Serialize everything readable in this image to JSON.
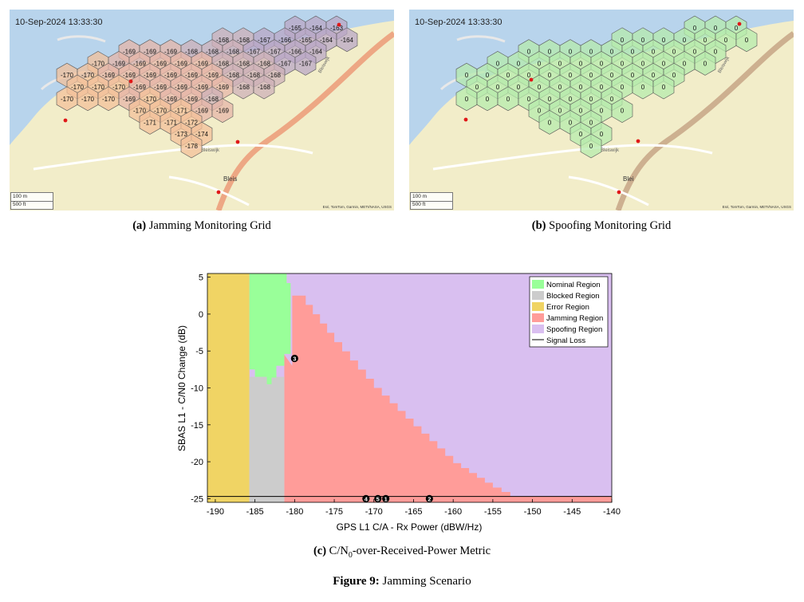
{
  "panel_a": {
    "timestamp": "10-Sep-2024 13:33:30",
    "scale_m": "100 m",
    "scale_ft": "500 ft",
    "attribution": "Esri, TomTom, Garmin, METI/NASA, USGS",
    "street_labels": [
      "Bleiswijk",
      "Bleiswijk",
      "Bleis"
    ],
    "cells": [
      [
        null,
        null,
        null,
        null,
        null,
        null,
        null,
        null,
        null,
        null,
        null,
        -165,
        -164,
        -163
      ],
      [
        null,
        null,
        null,
        null,
        null,
        null,
        null,
        -168,
        -168,
        -167,
        -166,
        -165,
        -164,
        -164
      ],
      [
        null,
        null,
        null,
        -169,
        -169,
        -169,
        -168,
        -168,
        -168,
        -167,
        -167,
        -166,
        -164,
        null
      ],
      [
        null,
        -170,
        -169,
        -169,
        -169,
        -169,
        -169,
        -168,
        -168,
        -168,
        -167,
        -167,
        null,
        null
      ],
      [
        -170,
        -170,
        -169,
        -169,
        -169,
        -169,
        -169,
        -169,
        -168,
        -168,
        -168,
        null,
        null,
        null
      ],
      [
        -170,
        -170,
        -170,
        -169,
        -169,
        -169,
        -169,
        -169,
        -168,
        -168,
        null,
        null,
        null,
        null
      ],
      [
        -170,
        -170,
        -170,
        -169,
        -170,
        -169,
        -169,
        -168,
        null,
        null,
        null,
        null,
        null,
        null
      ],
      [
        null,
        null,
        null,
        -170,
        -170,
        -171,
        -169,
        -169,
        null,
        null,
        null,
        null,
        null,
        null
      ],
      [
        null,
        null,
        null,
        null,
        -171,
        -171,
        -172,
        null,
        null,
        null,
        null,
        null,
        null,
        null
      ],
      [
        null,
        null,
        null,
        null,
        null,
        -173,
        -174,
        null,
        null,
        null,
        null,
        null,
        null,
        null
      ],
      [
        null,
        null,
        null,
        null,
        null,
        null,
        -178,
        null,
        null,
        null,
        null,
        null,
        null,
        null
      ]
    ]
  },
  "panel_b": {
    "timestamp": "10-Sep-2024 13:33:30",
    "scale_m": "100 m",
    "scale_ft": "500 ft",
    "attribution": "Esri, TomTom, Garmin, METI/NASA, USGS",
    "street_labels": [
      "Bleiswijk",
      "Bleiswijk",
      "Blei"
    ],
    "cells": [
      [
        null,
        null,
        null,
        null,
        null,
        null,
        null,
        null,
        null,
        null,
        null,
        0,
        0,
        0
      ],
      [
        null,
        null,
        null,
        null,
        null,
        null,
        null,
        0,
        0,
        0,
        0,
        0,
        0,
        0
      ],
      [
        null,
        null,
        null,
        0,
        0,
        0,
        0,
        0,
        0,
        0,
        0,
        0,
        0,
        null
      ],
      [
        null,
        0,
        0,
        0,
        0,
        0,
        0,
        0,
        0,
        0,
        0,
        0,
        null,
        null
      ],
      [
        0,
        0,
        0,
        0,
        0,
        0,
        0,
        0,
        0,
        0,
        0,
        null,
        null,
        null
      ],
      [
        0,
        0,
        0,
        0,
        0,
        0,
        0,
        0,
        0,
        0,
        null,
        null,
        null,
        null
      ],
      [
        0,
        0,
        0,
        0,
        0,
        0,
        0,
        0,
        null,
        null,
        null,
        null,
        null,
        null
      ],
      [
        null,
        null,
        null,
        0,
        0,
        0,
        0,
        0,
        null,
        null,
        null,
        null,
        null,
        null
      ],
      [
        null,
        null,
        null,
        null,
        0,
        0,
        0,
        null,
        null,
        null,
        null,
        null,
        null,
        null
      ],
      [
        null,
        null,
        null,
        null,
        null,
        0,
        0,
        null,
        null,
        null,
        null,
        null,
        null,
        null
      ],
      [
        null,
        null,
        null,
        null,
        null,
        null,
        0,
        null,
        null,
        null,
        null,
        null,
        null,
        null
      ]
    ]
  },
  "captions": {
    "a_label": "(a)",
    "a_text": " Jamming Monitoring Grid",
    "b_label": "(b)",
    "b_text": " Spoofing Monitoring Grid",
    "c_label": "(c)",
    "c_text_pre": " C/N",
    "c_sub": "0",
    "c_text_post": "-over-Received-Power Metric",
    "figure_label": "Figure 9:",
    "figure_text": " Jamming Scenario"
  },
  "chart_data": {
    "type": "area",
    "xlabel": "GPS L1 C/A - Rx Power (dBW/Hz)",
    "ylabel": "SBAS L1 - C/N0 Change (dB)",
    "xlim": [
      -191,
      -140
    ],
    "ylim": [
      -25.5,
      5.5
    ],
    "xticks": [
      -190,
      -185,
      -180,
      -175,
      -170,
      -165,
      -160,
      -155,
      -150,
      -145,
      -140
    ],
    "yticks": [
      5,
      0,
      -5,
      -10,
      -15,
      -20,
      -25
    ],
    "grid": false,
    "legend_position": "top-right",
    "legend": [
      {
        "name": "Nominal Region",
        "color": "#99ff99"
      },
      {
        "name": "Blocked Region",
        "color": "#cccccc"
      },
      {
        "name": "Error Region",
        "color": "#f0d464"
      },
      {
        "name": "Jamming Region",
        "color": "#ff9c99"
      },
      {
        "name": "Spoofing Region",
        "color": "#d9bff0"
      },
      {
        "name": "Signal Loss",
        "color": "#000000"
      }
    ],
    "regions": {
      "error_x_max": -185.7,
      "blocked_x_range": [
        -185.7,
        -181.3
      ],
      "blocked_y_max": -8.5,
      "nominal_x_range": [
        -185.7,
        -180.1
      ],
      "nominal_y_min": -9.5,
      "jamming_top_boundary": [
        [
          -181.3,
          -5.5
        ],
        [
          -180.3,
          -7.0
        ],
        [
          -179.5,
          2.5
        ],
        [
          -175,
          -3.8
        ],
        [
          -170,
          -10.0
        ],
        [
          -165,
          -15.2
        ],
        [
          -160,
          -20.2
        ],
        [
          -155,
          -23.5
        ],
        [
          -152.8,
          -24.7
        ]
      ]
    },
    "signal_loss_y": -24.7,
    "points": [
      {
        "label": "1",
        "x": -168.5,
        "y": -25.0
      },
      {
        "label": "2",
        "x": -163.0,
        "y": -25.0
      },
      {
        "label": "3",
        "x": -180.0,
        "y": -6.0
      },
      {
        "label": "4",
        "x": -171.0,
        "y": -25.0
      },
      {
        "label": "5",
        "x": -169.5,
        "y": -25.0
      }
    ]
  }
}
